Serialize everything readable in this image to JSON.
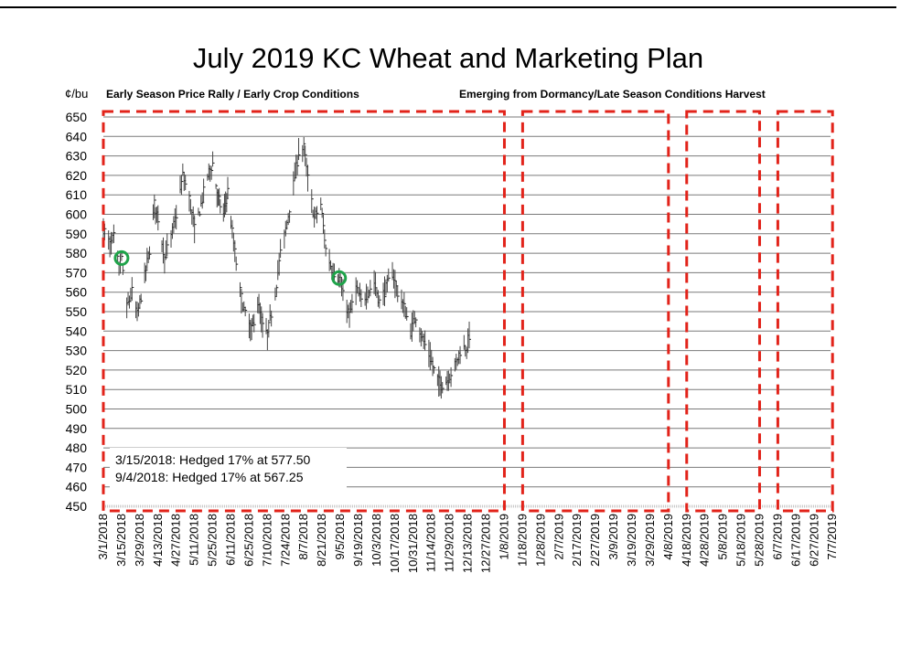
{
  "header": {
    "title": "July 2019 KC Wheat and Marketing Plan"
  },
  "chart_data": {
    "type": "ohlc",
    "title": "July 2019 KC Wheat and Marketing Plan",
    "ylabel": "¢/bu",
    "ylim": [
      450,
      650
    ],
    "grid": true,
    "y_ticks": [
      650,
      640,
      630,
      620,
      610,
      600,
      590,
      580,
      570,
      560,
      550,
      540,
      530,
      520,
      510,
      500,
      490,
      480,
      470,
      460,
      450
    ],
    "x_ticks": [
      "3/1/2018",
      "3/15/2018",
      "3/29/2018",
      "4/13/2018",
      "4/27/2018",
      "5/11/2018",
      "5/25/2018",
      "6/11/2018",
      "6/25/2018",
      "7/10/2018",
      "7/24/2018",
      "8/7/2018",
      "8/21/2018",
      "9/5/2018",
      "9/19/2018",
      "10/3/2018",
      "10/17/2018",
      "10/31/2018",
      "11/14/2018",
      "11/29/2018",
      "12/13/2018",
      "12/27/2018",
      "1/8/2019",
      "1/18/2019",
      "1/28/2019",
      "2/7/2019",
      "2/17/2019",
      "2/27/2019",
      "3/9/2019",
      "3/19/2019",
      "3/29/2019",
      "4/8/2019",
      "4/18/2019",
      "4/28/2019",
      "5/8/2019",
      "5/18/2019",
      "5/28/2019",
      "6/7/2019",
      "6/17/2019",
      "6/27/2019",
      "7/7/2019"
    ],
    "phases": [
      {
        "label": "Early Season Price Rally / Early Crop Conditions",
        "start": "3/1/2018",
        "end": "1/8/2019"
      },
      {
        "label": "Emerging from Dormancy/Late Season Conditions",
        "start": "1/18/2019",
        "end": "4/8/2019"
      },
      {
        "label": "",
        "start": "4/18/2019",
        "end": "5/28/2019"
      },
      {
        "label": "Harvest",
        "start": "6/7/2019",
        "end": "7/7/2019"
      }
    ],
    "annotations": [
      {
        "text": "3/15/2018: Hedged 17% at 577.50",
        "date": "3/15/2018",
        "price": 577.5
      },
      {
        "text": "9/4/2018: Hedged 17% at 567.25",
        "date": "9/4/2018",
        "price": 567.25
      }
    ],
    "price_path": [
      {
        "date": "3/1/2018",
        "price": 593
      },
      {
        "date": "3/6/2018",
        "price": 584
      },
      {
        "date": "3/9/2018",
        "price": 588
      },
      {
        "date": "3/13/2018",
        "price": 572
      },
      {
        "date": "3/15/2018",
        "price": 577
      },
      {
        "date": "3/19/2018",
        "price": 552
      },
      {
        "date": "3/23/2018",
        "price": 560
      },
      {
        "date": "3/27/2018",
        "price": 548
      },
      {
        "date": "4/2/2018",
        "price": 568
      },
      {
        "date": "4/6/2018",
        "price": 582
      },
      {
        "date": "4/10/2018",
        "price": 605
      },
      {
        "date": "4/13/2018",
        "price": 598
      },
      {
        "date": "4/18/2018",
        "price": 578
      },
      {
        "date": "4/23/2018",
        "price": 588
      },
      {
        "date": "4/27/2018",
        "price": 600
      },
      {
        "date": "5/2/2018",
        "price": 620
      },
      {
        "date": "5/7/2018",
        "price": 608
      },
      {
        "date": "5/11/2018",
        "price": 592
      },
      {
        "date": "5/16/2018",
        "price": 605
      },
      {
        "date": "5/21/2018",
        "price": 620
      },
      {
        "date": "5/25/2018",
        "price": 626
      },
      {
        "date": "5/30/2018",
        "price": 608
      },
      {
        "date": "6/4/2018",
        "price": 600
      },
      {
        "date": "6/8/2018",
        "price": 612
      },
      {
        "date": "6/13/2018",
        "price": 585
      },
      {
        "date": "6/18/2018",
        "price": 560
      },
      {
        "date": "6/22/2018",
        "price": 548
      },
      {
        "date": "6/27/2018",
        "price": 540
      },
      {
        "date": "7/2/2018",
        "price": 555
      },
      {
        "date": "7/6/2018",
        "price": 542
      },
      {
        "date": "7/10/2018",
        "price": 538
      },
      {
        "date": "7/16/2018",
        "price": 560
      },
      {
        "date": "7/20/2018",
        "price": 580
      },
      {
        "date": "7/24/2018",
        "price": 592
      },
      {
        "date": "7/30/2018",
        "price": 615
      },
      {
        "date": "8/3/2018",
        "price": 632
      },
      {
        "date": "8/7/2018",
        "price": 634
      },
      {
        "date": "8/10/2018",
        "price": 618
      },
      {
        "date": "8/15/2018",
        "price": 598
      },
      {
        "date": "8/20/2018",
        "price": 605
      },
      {
        "date": "8/24/2018",
        "price": 582
      },
      {
        "date": "8/29/2018",
        "price": 572
      },
      {
        "date": "9/4/2018",
        "price": 567
      },
      {
        "date": "9/7/2018",
        "price": 558
      },
      {
        "date": "9/12/2018",
        "price": 548
      },
      {
        "date": "9/17/2018",
        "price": 562
      },
      {
        "date": "9/21/2018",
        "price": 555
      },
      {
        "date": "9/26/2018",
        "price": 560
      },
      {
        "date": "10/1/2018",
        "price": 565
      },
      {
        "date": "10/5/2018",
        "price": 555
      },
      {
        "date": "10/10/2018",
        "price": 562
      },
      {
        "date": "10/15/2018",
        "price": 570
      },
      {
        "date": "10/19/2018",
        "price": 560
      },
      {
        "date": "10/24/2018",
        "price": 552
      },
      {
        "date": "10/29/2018",
        "price": 540
      },
      {
        "date": "11/2/2018",
        "price": 548
      },
      {
        "date": "11/7/2018",
        "price": 536
      },
      {
        "date": "11/12/2018",
        "price": 528
      },
      {
        "date": "11/16/2018",
        "price": 520
      },
      {
        "date": "11/21/2018",
        "price": 512
      },
      {
        "date": "11/27/2018",
        "price": 515
      },
      {
        "date": "12/3/2018",
        "price": 522
      },
      {
        "date": "12/7/2018",
        "price": 530
      },
      {
        "date": "12/12/2018",
        "price": 532
      },
      {
        "date": "12/14/2018",
        "price": 538
      }
    ]
  }
}
